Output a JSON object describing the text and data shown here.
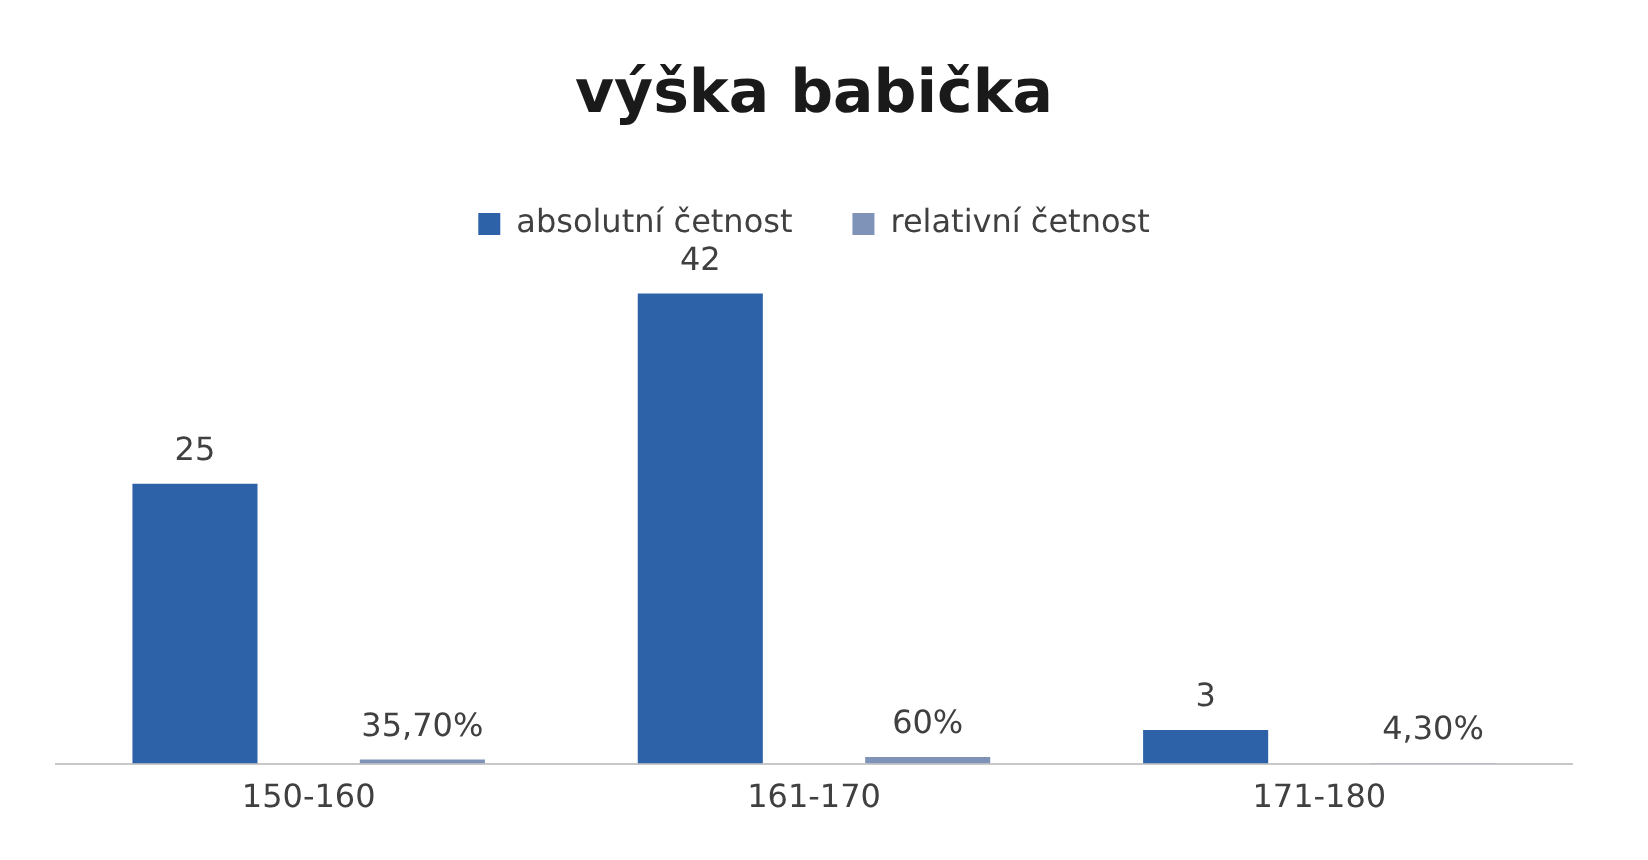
{
  "chart_data": {
    "type": "bar",
    "title": "výška babička",
    "categories": [
      "150-160",
      "161-170",
      "171-180"
    ],
    "series": [
      {
        "name": "absolutní četnost",
        "color": "#2e62a8",
        "values": [
          25,
          42,
          3
        ],
        "value_labels": [
          "25",
          "42",
          "3"
        ]
      },
      {
        "name": "relativní četnost",
        "color": "#7f93b8",
        "values": [
          0.357,
          0.6,
          0.043
        ],
        "value_labels": [
          "35,70%",
          "60%",
          "4,30%"
        ]
      }
    ],
    "legend": "top",
    "grid": false
  }
}
